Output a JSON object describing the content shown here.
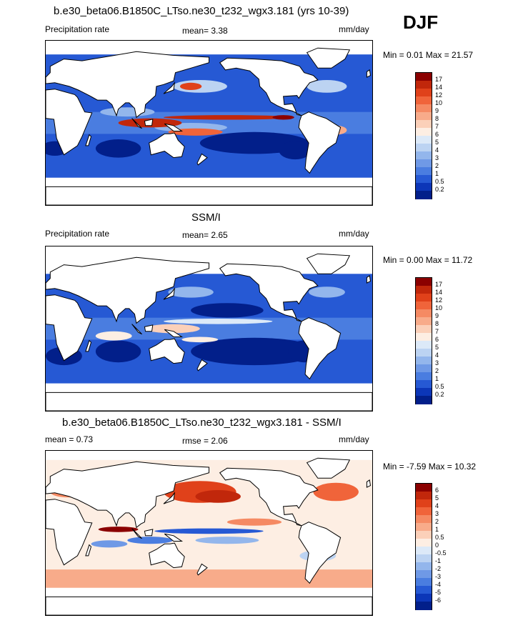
{
  "season": "DJF",
  "panels": [
    {
      "title": "b.e30_beta06.B1850C_LTso.ne30_t232_wgx3.181 (yrs 10-39)",
      "left_label": "Precipitation rate",
      "center_label": "mean=   3.38",
      "units": "mm/day",
      "minmax": "Min =   0.01 Max =  21.57",
      "colorbar_ticks": [
        "17",
        "14",
        "12",
        "10",
        "9",
        "8",
        "7",
        "6",
        "5",
        "4",
        "3",
        "2",
        "1",
        "0.5",
        "0.2"
      ]
    },
    {
      "title": "SSM/I",
      "left_label": "Precipitation rate",
      "center_label": "mean=   2.65",
      "units": "mm/day",
      "minmax": "Min =   0.00 Max =  11.72",
      "colorbar_ticks": [
        "17",
        "14",
        "12",
        "10",
        "9",
        "8",
        "7",
        "6",
        "5",
        "4",
        "3",
        "2",
        "1",
        "0.5",
        "0.2"
      ]
    },
    {
      "title": "b.e30_beta06.B1850C_LTso.ne30_t232_wgx3.181 - SSM/I",
      "left_label": "mean =   0.73",
      "center_label": "rmse =   2.06",
      "units": "mm/day",
      "minmax": "Min =  -7.59 Max =  10.32",
      "colorbar_ticks": [
        "6",
        "5",
        "4",
        "3",
        "2",
        "1",
        "0.5",
        "0",
        "-0.5",
        "-1",
        "-2",
        "-3",
        "-4",
        "-5",
        "-6"
      ]
    }
  ],
  "colors": {
    "precip_scale": [
      "#8b0000",
      "#c1270b",
      "#e0411a",
      "#f0643a",
      "#f58a63",
      "#f8ab8a",
      "#fbd0b9",
      "#fdeee3",
      "#dce9f8",
      "#bcd3f2",
      "#93b6ec",
      "#6f99e6",
      "#4a7de0",
      "#2659d4",
      "#0c36b8",
      "#021f8a"
    ],
    "diff_scale": [
      "#8b0000",
      "#c1270b",
      "#e0411a",
      "#f0643a",
      "#f58a63",
      "#f8ab8a",
      "#fbd0b9",
      "#fdeee3",
      "#dce9f8",
      "#bcd3f2",
      "#93b6ec",
      "#6f99e6",
      "#4a7de0",
      "#2659d4",
      "#0c36b8",
      "#021f8a"
    ]
  },
  "chart_data": [
    {
      "type": "heatmap",
      "title": "b.e30_beta06.B1850C_LTso.ne30_t232_wgx3.181 (yrs 10-39)",
      "variable": "Precipitation rate",
      "units": "mm/day",
      "mean": 3.38,
      "min": 0.01,
      "max": 21.57,
      "levels": [
        0.2,
        0.5,
        1,
        2,
        3,
        4,
        5,
        6,
        7,
        8,
        9,
        10,
        12,
        14,
        17
      ]
    },
    {
      "type": "heatmap",
      "title": "SSM/I",
      "variable": "Precipitation rate",
      "units": "mm/day",
      "mean": 2.65,
      "min": 0.0,
      "max": 11.72,
      "levels": [
        0.2,
        0.5,
        1,
        2,
        3,
        4,
        5,
        6,
        7,
        8,
        9,
        10,
        12,
        14,
        17
      ]
    },
    {
      "type": "heatmap",
      "title": "b.e30_beta06.B1850C_LTso.ne30_t232_wgx3.181 - SSM/I",
      "units": "mm/day",
      "mean": 0.73,
      "rmse": 2.06,
      "min": -7.59,
      "max": 10.32,
      "levels": [
        -6,
        -5,
        -4,
        -3,
        -2,
        -1,
        -0.5,
        0,
        0.5,
        1,
        2,
        3,
        4,
        5,
        6
      ]
    }
  ]
}
